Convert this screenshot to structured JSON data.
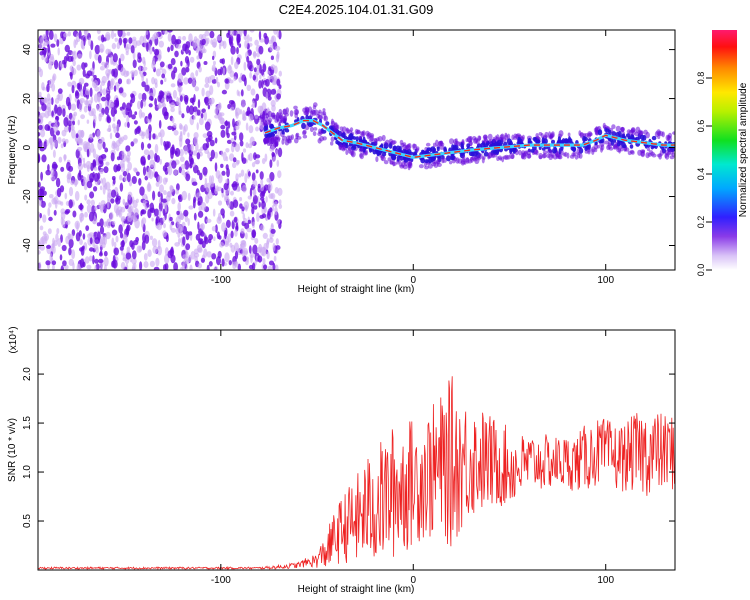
{
  "figure_title": "C2E4.2025.104.01.31.G09",
  "colors": {
    "snr_line": "#ee2222",
    "scatter_primary": "#6a0ddd",
    "scatter_light": "#c9a6f2",
    "ridge": "#3fd6ff",
    "axis": "#000000"
  },
  "chart_data": [
    {
      "type": "scatter",
      "subtype": "spectrogram-heatmap",
      "xlabel": "Height of straight line (km)",
      "ylabel": "Frequency (Hz)",
      "xlim": [
        -195,
        136
      ],
      "ylim": [
        -50,
        48
      ],
      "xticks": [
        -100,
        0,
        100
      ],
      "xtick_labels": [
        "-100",
        "0",
        "100"
      ],
      "yticks": [
        -40,
        -20,
        0,
        20,
        40
      ],
      "ytick_labels": [
        "-40",
        "-20",
        "0",
        "20",
        "40"
      ],
      "noise_region_x": [
        -195,
        -72
      ],
      "ridge": {
        "x": [
          -77,
          -70,
          -63,
          -57,
          -52,
          -47,
          -42,
          -37,
          -30,
          -20,
          -10,
          0,
          10,
          20,
          30,
          45,
          60,
          75,
          88,
          95,
          100,
          110,
          120,
          130,
          136
        ],
        "y": [
          6,
          8,
          9,
          11,
          11,
          9,
          6,
          3,
          2,
          0,
          -2,
          -4,
          -3,
          -2,
          -1,
          0,
          1,
          1,
          1,
          3,
          5,
          3,
          2,
          1,
          1
        ]
      },
      "colorbar": {
        "label": "Normalized spectral amplitude",
        "range": [
          0,
          1
        ],
        "ticks": [
          "0.0",
          "0.2",
          "0.4",
          "0.6",
          "0.8"
        ]
      }
    },
    {
      "type": "line",
      "xlabel": "Height of straight line (km)",
      "ylabel": "SNR (10 * v/v)",
      "y_multiplier": "(x10⁴)",
      "xlim": [
        -195,
        136
      ],
      "ylim": [
        0,
        2.45
      ],
      "xticks": [
        -100,
        0,
        100
      ],
      "xtick_labels": [
        "-100",
        "0",
        "100"
      ],
      "yticks": [
        0.5,
        1.0,
        1.5,
        2.0
      ],
      "ytick_labels": [
        "0.5",
        "1.0",
        "1.5",
        "2.0"
      ],
      "series": [
        {
          "x": [
            -195,
            -150,
            -100,
            -80,
            -70,
            -60,
            -55,
            -50,
            -45,
            -40,
            -35,
            -30,
            -25,
            -20,
            -15,
            -10,
            -5,
            0,
            5,
            10,
            15,
            20,
            25,
            30,
            35,
            40,
            45,
            50,
            55,
            60,
            65,
            70,
            75,
            80,
            85,
            90,
            95,
            100,
            105,
            110,
            115,
            120,
            125,
            130,
            136
          ],
          "mean": [
            0.02,
            0.02,
            0.02,
            0.02,
            0.03,
            0.05,
            0.08,
            0.1,
            0.2,
            0.35,
            0.45,
            0.5,
            0.6,
            0.65,
            0.72,
            0.8,
            0.85,
            0.9,
            0.95,
            1.0,
            1.05,
            1.1,
            1.1,
            1.12,
            1.12,
            1.1,
            1.08,
            1.05,
            1.05,
            1.1,
            1.1,
            1.1,
            1.1,
            1.1,
            1.1,
            1.15,
            1.2,
            1.2,
            1.15,
            1.15,
            1.2,
            1.2,
            1.2,
            1.2,
            1.2
          ],
          "amp": [
            0.01,
            0.01,
            0.01,
            0.01,
            0.02,
            0.03,
            0.05,
            0.08,
            0.2,
            0.3,
            0.38,
            0.45,
            0.55,
            0.6,
            0.65,
            0.7,
            0.7,
            0.65,
            0.65,
            0.7,
            0.75,
            0.9,
            0.7,
            0.6,
            0.55,
            0.5,
            0.45,
            0.4,
            0.35,
            0.3,
            0.3,
            0.28,
            0.28,
            0.28,
            0.3,
            0.35,
            0.35,
            0.35,
            0.35,
            0.35,
            0.4,
            0.45,
            0.45,
            0.4,
            0.4
          ]
        }
      ]
    }
  ]
}
